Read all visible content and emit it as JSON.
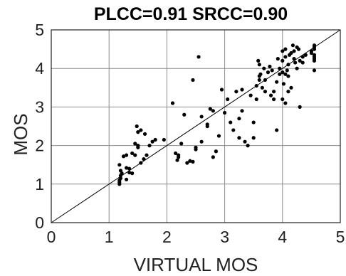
{
  "chart_data": {
    "type": "scatter",
    "title": "PLCC=0.91 SRCC=0.90",
    "xlabel": "VIRTUAL MOS",
    "ylabel": "MOS",
    "xlim": [
      0,
      5
    ],
    "ylim": [
      0,
      5
    ],
    "xticks": [
      "0",
      "1",
      "2",
      "3",
      "4",
      "5"
    ],
    "yticks": [
      "0",
      "1",
      "2",
      "3",
      "4",
      "5"
    ],
    "grid": true,
    "reference_line": {
      "x": [
        0,
        5
      ],
      "y": [
        0,
        5
      ]
    },
    "point_color": "#000000",
    "points": [
      [
        1.18,
        1.0
      ],
      [
        1.18,
        1.05
      ],
      [
        1.18,
        1.1
      ],
      [
        1.2,
        1.15
      ],
      [
        1.2,
        1.22
      ],
      [
        1.2,
        1.35
      ],
      [
        1.18,
        1.5
      ],
      [
        1.25,
        1.72
      ],
      [
        1.3,
        1.75
      ],
      [
        1.3,
        1.12
      ],
      [
        1.35,
        1.4
      ],
      [
        1.35,
        1.3
      ],
      [
        1.4,
        1.28
      ],
      [
        1.45,
        1.75
      ],
      [
        1.5,
        2.0
      ],
      [
        1.5,
        2.35
      ],
      [
        1.48,
        2.5
      ],
      [
        1.55,
        2.4
      ],
      [
        1.55,
        1.55
      ],
      [
        1.6,
        1.65
      ],
      [
        1.65,
        1.75
      ],
      [
        1.7,
        2.0
      ],
      [
        1.75,
        2.1
      ],
      [
        1.8,
        2.15
      ],
      [
        1.95,
        2.15
      ],
      [
        1.4,
        1.8
      ],
      [
        1.5,
        1.95
      ],
      [
        1.45,
        2.05
      ],
      [
        1.62,
        2.3
      ],
      [
        1.3,
        1.42
      ],
      [
        1.22,
        1.28
      ],
      [
        2.1,
        3.1
      ],
      [
        2.15,
        1.8
      ],
      [
        2.2,
        1.7
      ],
      [
        2.18,
        1.62
      ],
      [
        2.25,
        2.05
      ],
      [
        2.3,
        2.8
      ],
      [
        2.35,
        1.55
      ],
      [
        2.4,
        1.6
      ],
      [
        2.45,
        1.58
      ],
      [
        2.5,
        1.95
      ],
      [
        2.5,
        1.9
      ],
      [
        2.55,
        4.3
      ],
      [
        2.45,
        3.7
      ],
      [
        2.6,
        2.1
      ],
      [
        2.7,
        2.5
      ],
      [
        2.7,
        2.55
      ],
      [
        2.75,
        2.95
      ],
      [
        2.8,
        1.7
      ],
      [
        2.85,
        1.85
      ],
      [
        2.9,
        2.25
      ],
      [
        2.95,
        3.45
      ],
      [
        3.0,
        2.85
      ],
      [
        3.05,
        3.2
      ],
      [
        3.1,
        2.6
      ],
      [
        3.15,
        2.4
      ],
      [
        3.2,
        3.4
      ],
      [
        3.25,
        2.2
      ],
      [
        3.25,
        2.7
      ],
      [
        3.3,
        3.45
      ],
      [
        3.3,
        2.9
      ],
      [
        3.35,
        2.1
      ],
      [
        3.4,
        2.0
      ],
      [
        3.45,
        3.3
      ],
      [
        3.5,
        2.2
      ],
      [
        3.5,
        2.6
      ],
      [
        3.55,
        3.2
      ],
      [
        3.55,
        3.55
      ],
      [
        3.6,
        3.7
      ],
      [
        3.6,
        3.8
      ],
      [
        3.6,
        4.1
      ],
      [
        3.65,
        3.5
      ],
      [
        3.7,
        3.7
      ],
      [
        3.7,
        3.4
      ],
      [
        3.75,
        3.9
      ],
      [
        3.8,
        3.3
      ],
      [
        3.85,
        3.4
      ],
      [
        3.85,
        3.2
      ],
      [
        3.9,
        2.4
      ],
      [
        3.9,
        3.65
      ],
      [
        3.95,
        3.85
      ],
      [
        3.95,
        4.0
      ],
      [
        4.0,
        4.2
      ],
      [
        4.0,
        4.45
      ],
      [
        4.05,
        4.5
      ],
      [
        4.05,
        4.3
      ],
      [
        4.1,
        4.1
      ],
      [
        4.1,
        3.8
      ],
      [
        4.15,
        3.5
      ],
      [
        4.15,
        4.4
      ],
      [
        4.2,
        4.45
      ],
      [
        4.2,
        4.25
      ],
      [
        4.25,
        4.55
      ],
      [
        4.25,
        4.0
      ],
      [
        4.3,
        4.2
      ],
      [
        4.3,
        3.0
      ],
      [
        4.35,
        4.15
      ],
      [
        4.4,
        4.35
      ],
      [
        4.5,
        4.4
      ],
      [
        4.5,
        4.45
      ],
      [
        4.55,
        4.6
      ],
      [
        4.55,
        4.55
      ],
      [
        4.55,
        4.5
      ],
      [
        4.55,
        4.35
      ],
      [
        4.55,
        4.3
      ],
      [
        4.55,
        4.25
      ],
      [
        4.55,
        4.2
      ],
      [
        4.55,
        3.95
      ],
      [
        4.0,
        3.9
      ],
      [
        4.05,
        3.85
      ],
      [
        4.12,
        4.35
      ],
      [
        4.18,
        4.6
      ],
      [
        4.22,
        4.15
      ],
      [
        3.92,
        4.25
      ],
      [
        3.82,
        3.95
      ],
      [
        3.78,
        4.05
      ],
      [
        3.68,
        4.0
      ],
      [
        3.58,
        4.2
      ],
      [
        3.62,
        3.85
      ],
      [
        4.02,
        3.6
      ],
      [
        4.08,
        3.95
      ],
      [
        4.28,
        4.5
      ],
      [
        4.35,
        4.3
      ],
      [
        4.0,
        3.2
      ],
      [
        4.05,
        3.1
      ],
      [
        4.1,
        3.4
      ],
      [
        2.2,
        1.75
      ],
      [
        2.6,
        2.75
      ],
      [
        2.8,
        2.9
      ]
    ]
  }
}
